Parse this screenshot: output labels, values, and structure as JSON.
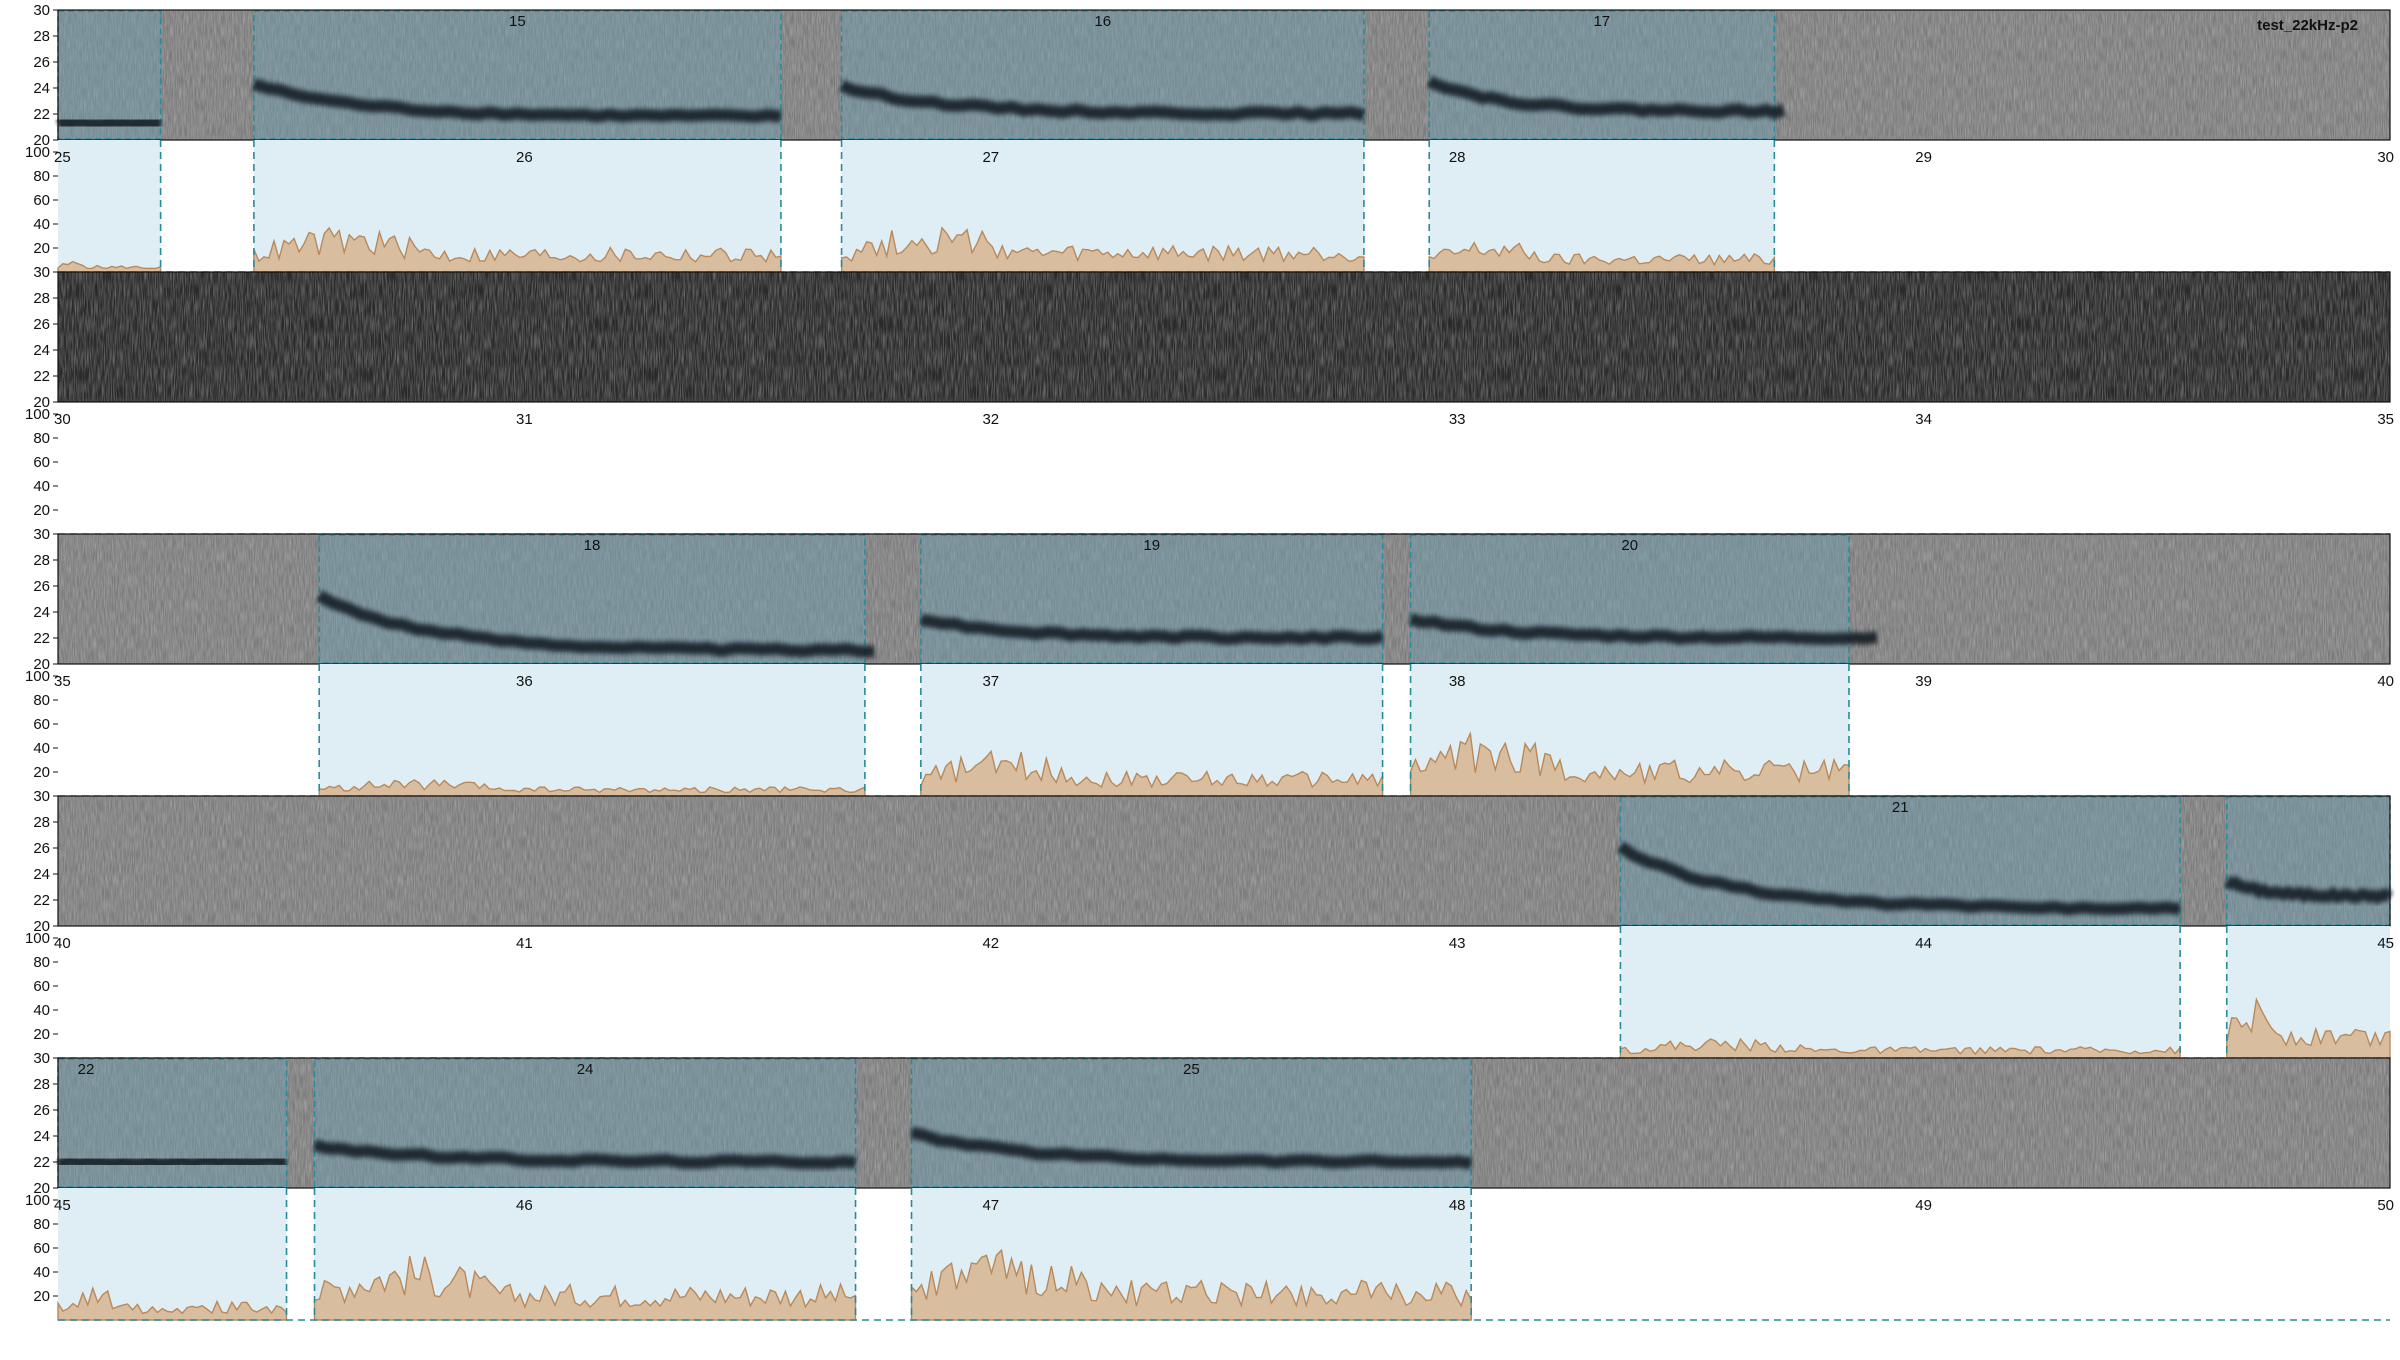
{
  "file_label": "test_22kHz-p2",
  "colors": {
    "spectrogram_bg": "#7a7a7a",
    "silent_bg": "#2a2a2a",
    "selection_overlay": "#6f9fb3",
    "selection_light": "#deeef4",
    "selection_border": "#2b8a99",
    "trace": "#0a1a1e",
    "envelope_fill": "#d8bd9f",
    "envelope_line": "#b9895a"
  },
  "chart_data": [
    {
      "type": "spectrogram",
      "time_range": [
        25,
        30
      ],
      "freq_range_khz": [
        20,
        30
      ],
      "freq_ticks": [
        "20",
        "22",
        "24",
        "26",
        "28",
        "30"
      ],
      "time_ticks": [
        "25",
        "26",
        "27",
        "28",
        "29",
        "30"
      ],
      "amp_ticks": [
        "20",
        "40",
        "60",
        "80",
        "100"
      ],
      "silent": false,
      "selections": [
        {
          "label": "",
          "start": 25.0,
          "end": 25.22
        },
        {
          "label": "15",
          "start": 25.42,
          "end": 26.55
        },
        {
          "label": "16",
          "start": 26.68,
          "end": 27.8
        },
        {
          "label": "17",
          "start": 27.94,
          "end": 28.68
        }
      ],
      "calls": [
        {
          "start": 25.0,
          "end": 25.22,
          "f_start": 21.3,
          "f_end": 21.3
        },
        {
          "start": 25.42,
          "end": 26.55,
          "f_start": 24.3,
          "f_end": 21.8
        },
        {
          "start": 26.68,
          "end": 27.8,
          "f_start": 24.1,
          "f_end": 22.0
        },
        {
          "start": 27.94,
          "end": 28.7,
          "f_start": 24.6,
          "f_end": 22.2
        }
      ],
      "envelope": [
        {
          "start": 25.0,
          "end": 25.22,
          "peak": 10
        },
        {
          "start": 25.42,
          "end": 26.55,
          "peak": 38
        },
        {
          "start": 26.68,
          "end": 27.8,
          "peak": 40
        },
        {
          "start": 27.94,
          "end": 28.68,
          "peak": 28
        }
      ]
    },
    {
      "type": "spectrogram",
      "time_range": [
        30,
        35
      ],
      "freq_range_khz": [
        20,
        30
      ],
      "freq_ticks": [
        "20",
        "22",
        "24",
        "26",
        "28",
        "30"
      ],
      "time_ticks": [
        "30",
        "31",
        "32",
        "33",
        "34",
        "35"
      ],
      "amp_ticks": [
        "20",
        "40",
        "60",
        "80",
        "100"
      ],
      "silent": true,
      "selections": [],
      "calls": [],
      "envelope": []
    },
    {
      "type": "spectrogram",
      "time_range": [
        35,
        40
      ],
      "freq_range_khz": [
        20,
        30
      ],
      "freq_ticks": [
        "20",
        "22",
        "24",
        "26",
        "28",
        "30"
      ],
      "time_ticks": [
        "35",
        "36",
        "37",
        "38",
        "39",
        "40"
      ],
      "amp_ticks": [
        "20",
        "40",
        "60",
        "80",
        "100"
      ],
      "silent": false,
      "selections": [
        {
          "label": "18",
          "start": 35.56,
          "end": 36.73
        },
        {
          "label": "19",
          "start": 36.85,
          "end": 37.84
        },
        {
          "label": "20",
          "start": 37.9,
          "end": 38.84
        }
      ],
      "calls": [
        {
          "start": 35.56,
          "end": 36.75,
          "f_start": 25.2,
          "f_end": 21.0
        },
        {
          "start": 36.85,
          "end": 37.84,
          "f_start": 23.5,
          "f_end": 22.0
        },
        {
          "start": 37.9,
          "end": 38.9,
          "f_start": 23.5,
          "f_end": 22.0
        }
      ],
      "envelope": [
        {
          "start": 35.56,
          "end": 36.73,
          "peak": 14
        },
        {
          "start": 36.85,
          "end": 37.84,
          "peak": 38
        },
        {
          "start": 37.9,
          "end": 38.84,
          "peak": 55
        }
      ]
    },
    {
      "type": "spectrogram",
      "time_range": [
        40,
        45
      ],
      "freq_range_khz": [
        20,
        30
      ],
      "freq_ticks": [
        "20",
        "22",
        "24",
        "26",
        "28",
        "30"
      ],
      "time_ticks": [
        "40",
        "41",
        "42",
        "43",
        "44",
        "45"
      ],
      "amp_ticks": [
        "20",
        "40",
        "60",
        "80",
        "100"
      ],
      "silent": false,
      "selections": [
        {
          "label": "21",
          "start": 43.35,
          "end": 44.55
        },
        {
          "label": "",
          "start": 44.65,
          "end": 45.0
        }
      ],
      "calls": [
        {
          "start": 43.35,
          "end": 44.55,
          "f_start": 26.0,
          "f_end": 21.3
        },
        {
          "start": 44.65,
          "end": 45.0,
          "f_start": 23.5,
          "f_end": 22.3
        }
      ],
      "envelope": [
        {
          "start": 43.35,
          "end": 44.55,
          "peak": 17
        },
        {
          "start": 44.65,
          "end": 45.0,
          "peak": 50
        }
      ]
    },
    {
      "type": "spectrogram",
      "time_range": [
        45,
        50
      ],
      "freq_range_khz": [
        20,
        30
      ],
      "freq_ticks": [
        "20",
        "22",
        "24",
        "26",
        "28",
        "30"
      ],
      "time_ticks": [
        "45",
        "46",
        "47",
        "48",
        "49",
        "50"
      ],
      "amp_ticks": [
        "20",
        "40",
        "60",
        "80",
        "100"
      ],
      "silent": false,
      "selections": [
        {
          "label": "22",
          "start": 45.0,
          "end": 45.49
        },
        {
          "label": "24",
          "start": 45.55,
          "end": 46.71
        },
        {
          "label": "25",
          "start": 46.83,
          "end": 48.03
        }
      ],
      "calls": [
        {
          "start": 45.0,
          "end": 45.49,
          "f_start": 22.0,
          "f_end": 22.0
        },
        {
          "start": 45.55,
          "end": 46.71,
          "f_start": 23.3,
          "f_end": 22.0
        },
        {
          "start": 46.83,
          "end": 48.03,
          "f_start": 24.2,
          "f_end": 22.0
        }
      ],
      "envelope": [
        {
          "start": 45.0,
          "end": 45.49,
          "peak": 28
        },
        {
          "start": 45.55,
          "end": 46.71,
          "peak": 55
        },
        {
          "start": 46.83,
          "end": 48.03,
          "peak": 60
        }
      ]
    }
  ]
}
